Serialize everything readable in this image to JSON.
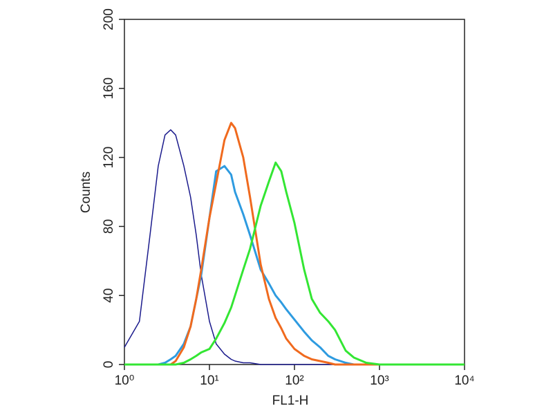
{
  "chart_data": {
    "type": "line",
    "xlabel": "FL1-H",
    "ylabel": "Counts",
    "xscale": "log",
    "xlim": [
      1,
      10000
    ],
    "xticks": [
      {
        "value": 1,
        "label": "10⁰"
      },
      {
        "value": 10,
        "label": "10¹"
      },
      {
        "value": 100,
        "label": "10²"
      },
      {
        "value": 1000,
        "label": "10³"
      },
      {
        "value": 10000,
        "label": "10⁴"
      }
    ],
    "ylim": [
      0,
      200
    ],
    "yticks": [
      0,
      40,
      80,
      120,
      160,
      200
    ],
    "x": [
      1,
      1.5,
      2,
      2.5,
      3,
      3.5,
      4,
      5,
      6,
      7,
      8,
      10,
      12,
      15,
      18,
      20,
      25,
      30,
      40,
      50,
      60,
      70,
      80,
      100,
      130,
      160,
      200,
      250,
      300,
      400,
      500,
      700,
      1000,
      2000,
      5000,
      10000
    ],
    "series": [
      {
        "color": "#1a1a8c",
        "values": [
          10,
          25,
          75,
          115,
          133,
          136,
          133,
          115,
          97,
          75,
          52,
          25,
          12,
          6,
          3,
          2,
          1,
          1,
          0,
          0,
          0,
          0,
          0,
          0,
          0,
          0,
          0,
          0,
          0,
          0,
          0,
          0,
          0,
          0,
          0,
          0
        ]
      },
      {
        "color": "#2e9be0",
        "values": [
          0,
          0,
          0,
          0,
          1,
          3,
          5,
          12,
          22,
          38,
          52,
          85,
          112,
          115,
          110,
          100,
          87,
          75,
          55,
          47,
          40,
          36,
          32,
          26,
          19,
          14,
          10,
          5,
          3,
          1,
          0,
          0,
          0,
          0,
          0,
          0
        ]
      },
      {
        "color": "#f06a1e",
        "values": [
          0,
          0,
          0,
          0,
          0,
          0,
          2,
          10,
          22,
          38,
          55,
          85,
          105,
          130,
          140,
          137,
          120,
          97,
          58,
          38,
          27,
          21,
          15,
          9,
          5,
          3,
          2,
          1,
          0,
          0,
          0,
          0,
          0,
          0,
          0,
          0
        ]
      },
      {
        "color": "#33e633",
        "values": [
          0,
          0,
          0,
          0,
          0,
          0,
          0,
          1,
          3,
          5,
          7,
          9,
          15,
          24,
          33,
          40,
          55,
          67,
          92,
          106,
          117,
          112,
          100,
          82,
          55,
          38,
          30,
          25,
          20,
          8,
          4,
          1,
          0,
          0,
          0,
          0
        ]
      }
    ]
  }
}
